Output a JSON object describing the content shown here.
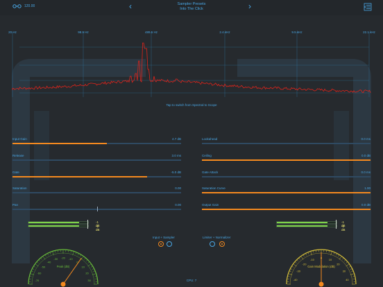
{
  "topbar": {
    "bpm": "120.00",
    "preset_line1": "Sampler Presets",
    "preset_line2": "Into The Click",
    "prev_icon": "chevron-left-icon",
    "next_icon": "chevron-right-icon",
    "menu_icon": "sidebar-menu-icon"
  },
  "spectrum": {
    "freq_labels": [
      "20 Hz",
      "98.9 Hz",
      "489.5 Hz",
      "2.4 kHz",
      "9.5 kHz",
      "22.1 kHz"
    ],
    "hint": "Tap to switch from Spectral to Scope",
    "colors": {
      "trace": "#e0241b",
      "grid": "#2c79a8"
    }
  },
  "controls": {
    "left": [
      {
        "label": "Input Gain",
        "value": "4.7 dB",
        "fill": 0.56
      },
      {
        "label": "Release",
        "value": "3.0 ms",
        "fill": 0.0
      },
      {
        "label": "Gate",
        "value": "-5.0 dB",
        "fill": 0.8
      },
      {
        "label": "Saturation",
        "value": "0.00",
        "fill": 0.0
      },
      {
        "label": "Pan",
        "value": "0.00",
        "fill": 0.5,
        "centered": true
      }
    ],
    "right": [
      {
        "label": "Lookahead",
        "value": "0.0 ms",
        "fill": 0.0
      },
      {
        "label": "Ceiling",
        "value": "0.0 dB",
        "fill": 1.0
      },
      {
        "label": "Gate Attack",
        "value": "0.0 ms",
        "fill": 0.0
      },
      {
        "label": "Saturation Curve",
        "value": "1.00",
        "fill": 1.0
      },
      {
        "label": "Output Gain",
        "value": "0.0 dB",
        "fill": 1.0
      }
    ]
  },
  "meters": {
    "left": {
      "top": "-1 dB",
      "bottom": "-1 dB",
      "level": 0.85
    },
    "right": {
      "top": "-1 dB",
      "bottom": "-1 dB",
      "level": 0.85
    }
  },
  "modes": {
    "left_label": "Input + Sampler",
    "right_label": "Limiter + Normalizer",
    "left_selected": 0,
    "right_selected": 1
  },
  "gauges": {
    "left": {
      "title": "Peak (dB)",
      "color": "#6abf3a",
      "ticks": [
        "-70",
        "-60",
        "-50",
        "-40",
        "-30",
        "-20",
        "-10",
        "0",
        "10",
        "20",
        "30"
      ],
      "needle_angle": 35
    },
    "right": {
      "title": "Gain Modulation (dB)",
      "color": "#d9c23a",
      "ticks": [
        "-40",
        "-30",
        "-20",
        "-10",
        "0",
        "10",
        "20",
        "30",
        "40"
      ],
      "needle_angle": 0
    }
  },
  "footer": {
    "cpu": "CPU: 7"
  }
}
